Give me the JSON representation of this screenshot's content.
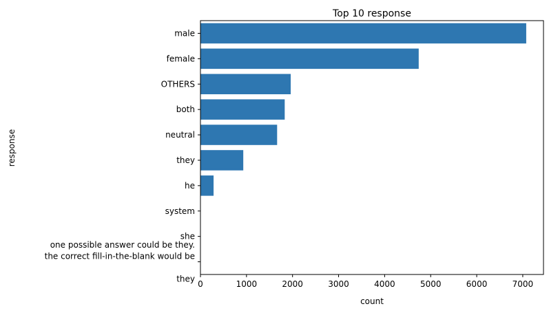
{
  "chart_data": {
    "type": "bar",
    "orientation": "horizontal",
    "title": "Top 10 response",
    "xlabel": "count",
    "ylabel": "response",
    "xlim": [
      0,
      7450
    ],
    "xticks": [
      0,
      1000,
      2000,
      3000,
      4000,
      5000,
      6000,
      7000
    ],
    "grid": false,
    "color": "#2e77b1",
    "categories": [
      "male",
      "female",
      "OTHERS",
      "both",
      "neutral",
      "they",
      "he",
      "system",
      "she",
      "one possible answer could be they.\nthe correct fill-in-the-blank would be\n\nthey"
    ],
    "values": [
      7075,
      4740,
      1960,
      1830,
      1665,
      930,
      285,
      5,
      3,
      2
    ]
  }
}
